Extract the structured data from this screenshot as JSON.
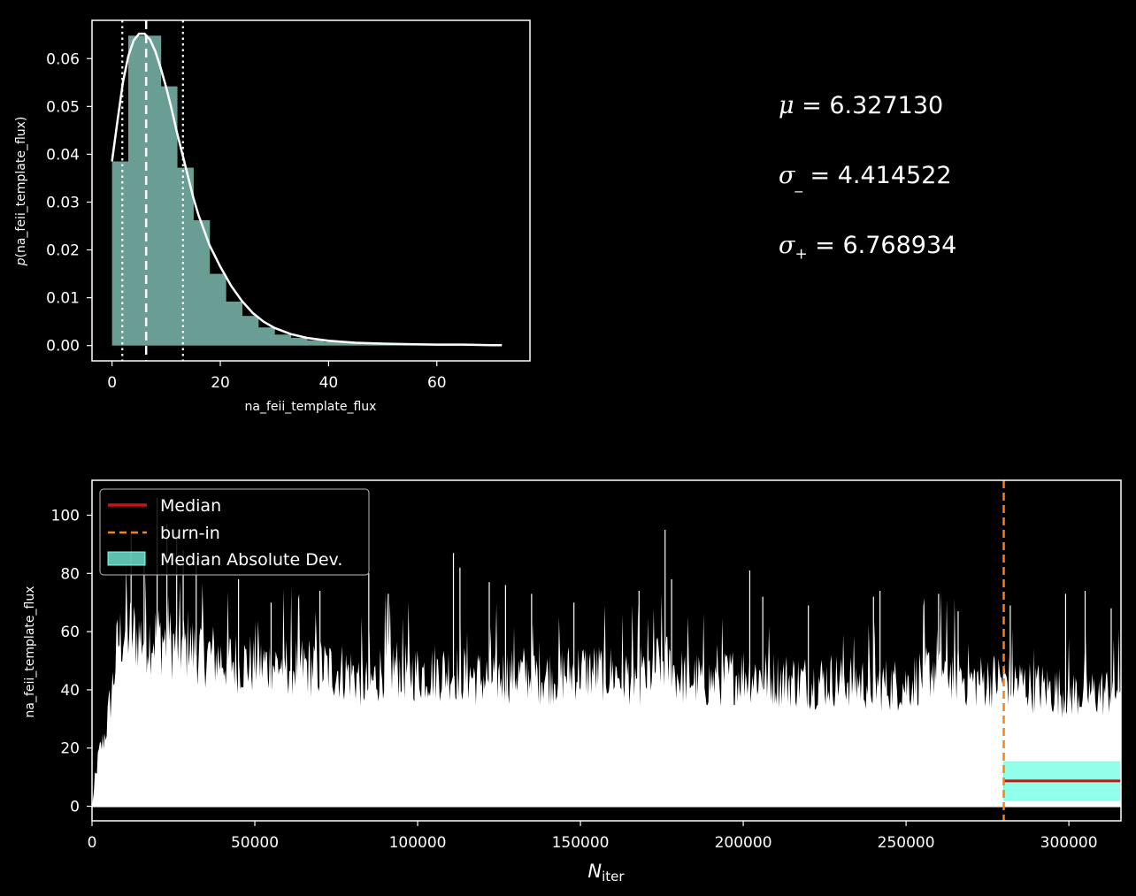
{
  "chart_data": [
    {
      "type": "bar",
      "name": "posterior-histogram",
      "xlabel": "na_feii_template_flux",
      "ylabel": "p(na_feii_template_flux)",
      "ylabel_italic": "p",
      "ylabel_rest": "(na_feii_template_flux)",
      "xlim": [
        -3.7,
        77.2
      ],
      "ylim": [
        -0.0032,
        0.068
      ],
      "xticks": [
        0,
        20,
        40,
        60
      ],
      "yticks": [
        0.0,
        0.01,
        0.02,
        0.03,
        0.04,
        0.05,
        0.06
      ],
      "ytick_labels": [
        "0.00",
        "0.01",
        "0.02",
        "0.03",
        "0.04",
        "0.05",
        "0.06"
      ],
      "bins": {
        "start": 0,
        "width": 3.0,
        "values": [
          0.0385,
          0.0648,
          0.0648,
          0.0542,
          0.0372,
          0.0262,
          0.015,
          0.0092,
          0.0062,
          0.0038,
          0.0023,
          0.0016,
          0.0011,
          0.0008,
          0.0006,
          0.0005,
          0.0004,
          0.0003,
          0.0003,
          0.0002,
          0.0002,
          0.0001,
          0.0001,
          0.0001
        ]
      },
      "kde": {
        "x": [
          0,
          1,
          2,
          3,
          4,
          5,
          6,
          7,
          8,
          9,
          10,
          11,
          12,
          13,
          14,
          15,
          16,
          18,
          20,
          22,
          24,
          26,
          28,
          30,
          33,
          36,
          40,
          45,
          50,
          55,
          60,
          65,
          70,
          72
        ],
        "y": [
          0.0385,
          0.047,
          0.055,
          0.0605,
          0.0638,
          0.0652,
          0.0652,
          0.064,
          0.0615,
          0.058,
          0.054,
          0.0495,
          0.0445,
          0.04,
          0.0355,
          0.031,
          0.0272,
          0.021,
          0.0165,
          0.0125,
          0.0093,
          0.0068,
          0.005,
          0.0037,
          0.0024,
          0.0016,
          0.001,
          0.0006,
          0.0004,
          0.0003,
          0.0002,
          0.0002,
          0.0001,
          0.0001
        ]
      },
      "median": 6.3,
      "interval": [
        1.9,
        13.1
      ],
      "bar_color": "#6a9e94",
      "line_color": "#ffffff"
    },
    {
      "type": "line",
      "name": "trace",
      "xlabel": "N",
      "xlabel_sub": "iter",
      "ylabel": "na_feii_template_flux",
      "xlim": [
        0,
        316000
      ],
      "ylim": [
        -5,
        112
      ],
      "xticks": [
        0,
        50000,
        100000,
        150000,
        200000,
        250000,
        300000
      ],
      "yticks": [
        0,
        20,
        40,
        60,
        80,
        100
      ],
      "burn_in": 280000,
      "median": 8.7,
      "mad_band": [
        2.0,
        15.3
      ],
      "envelope": {
        "x": [
          0,
          2000,
          4000,
          6000,
          8000,
          10000,
          15000,
          20000,
          25000,
          30000,
          40000,
          50000,
          60000,
          70000,
          80000,
          85000,
          90000,
          100000,
          110000,
          120000,
          130000,
          140000,
          150000,
          160000,
          170000,
          175000,
          180000,
          190000,
          200000,
          210000,
          220000,
          230000,
          240000,
          250000,
          260000,
          270000,
          280000,
          290000,
          300000,
          310000,
          316000
        ],
        "y": [
          0,
          18,
          25,
          40,
          58,
          62,
          60,
          60,
          57,
          56,
          52,
          50,
          50,
          49,
          47,
          42,
          50,
          47,
          48,
          45,
          47,
          46,
          48,
          47,
          45,
          52,
          46,
          44,
          47,
          45,
          44,
          45,
          43,
          43,
          50,
          44,
          45,
          42,
          40,
          40,
          42
        ]
      },
      "spikes": [
        [
          12000,
          94
        ],
        [
          16000,
          86
        ],
        [
          20000,
          106
        ],
        [
          23000,
          97
        ],
        [
          26000,
          93
        ],
        [
          28000,
          88
        ],
        [
          32000,
          84
        ],
        [
          45000,
          78
        ],
        [
          55000,
          70
        ],
        [
          70000,
          74
        ],
        [
          85000,
          80
        ],
        [
          91000,
          73
        ],
        [
          111000,
          87
        ],
        [
          113000,
          82
        ],
        [
          122000,
          77
        ],
        [
          127000,
          76
        ],
        [
          135000,
          73
        ],
        [
          148000,
          70
        ],
        [
          168000,
          74
        ],
        [
          176000,
          95
        ],
        [
          178000,
          78
        ],
        [
          202000,
          81
        ],
        [
          206000,
          72
        ],
        [
          220000,
          69
        ],
        [
          240000,
          72
        ],
        [
          242000,
          74
        ],
        [
          260000,
          73
        ],
        [
          266000,
          67
        ],
        [
          282000,
          69
        ],
        [
          299000,
          73
        ],
        [
          305000,
          74
        ],
        [
          313000,
          68
        ]
      ],
      "line_color": "#ffffff",
      "median_color": "#cc1111",
      "burn_in_color": "#ff7f0e",
      "mad_color": "#7fffe8",
      "legend": {
        "placement": "upper-left",
        "entries": [
          {
            "label": "Median",
            "style": "solid-line",
            "color": "#cc1111"
          },
          {
            "label": "burn-in",
            "style": "dashed-line",
            "color": "#ff7f0e"
          },
          {
            "label": "Median Absolute Dev.",
            "style": "patch",
            "color": "#7fffe8"
          }
        ]
      }
    }
  ],
  "stats": {
    "mu_symbol": "μ",
    "mu_value": "= 6.327130",
    "sigma_minus_symbol": "σ",
    "sigma_minus_sub": "_",
    "sigma_minus_value": "= 4.414522",
    "sigma_plus_symbol": "σ",
    "sigma_plus_sub": "+",
    "sigma_plus_value": "= 6.768934"
  }
}
